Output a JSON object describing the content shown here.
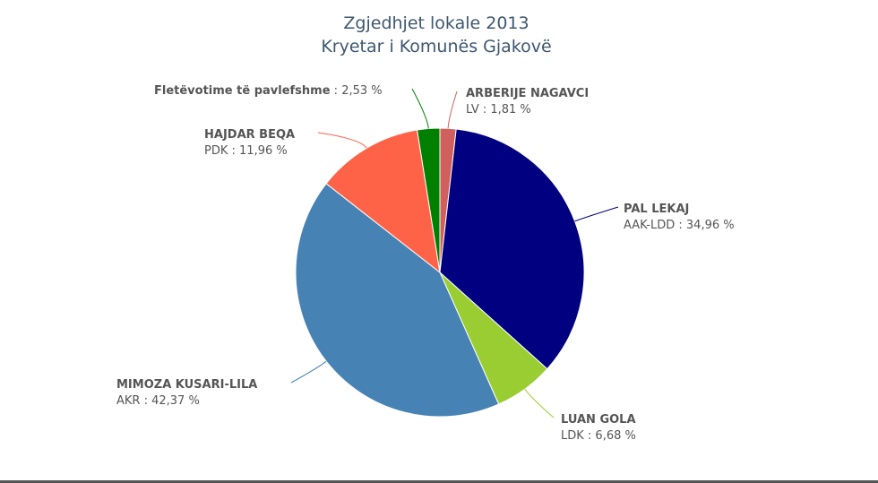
{
  "chart_data": {
    "type": "pie",
    "title": "Zgjedhjet lokale 2013",
    "subtitle": "Kryetar i Komunës Gjakovë",
    "slices": [
      {
        "name": "ARBERIJE NAGAVCI",
        "sublabel": "LV : 1,81 %",
        "value": 1.81,
        "color": "#d0605e"
      },
      {
        "name": "PAL LEKAJ",
        "sublabel": "AAK-LDD : 34,96 %",
        "value": 34.96,
        "color": "#000080"
      },
      {
        "name": "LUAN GOLA",
        "sublabel": "LDK : 6,68 %",
        "value": 6.68,
        "color": "#9acd32"
      },
      {
        "name": "MIMOZA KUSARI-LILA",
        "sublabel": "AKR : 42,37 %",
        "value": 42.37,
        "color": "#4682b4"
      },
      {
        "name": "HAJDAR BEQA",
        "sublabel": "PDK : 11,96 %",
        "value": 11.96,
        "color": "#ff6347"
      },
      {
        "name": "Fletëvotime të pavlefshme",
        "sublabel": " : 2,53 %",
        "value": 2.53,
        "color": "#008000"
      }
    ]
  }
}
